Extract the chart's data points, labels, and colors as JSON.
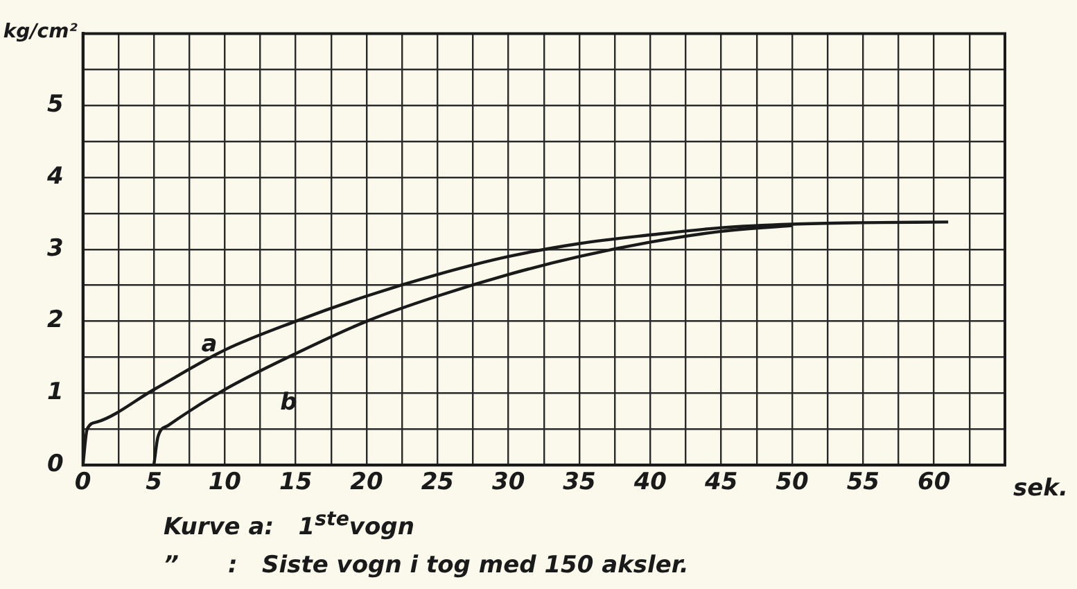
{
  "chart_data": {
    "type": "line",
    "xlabel": "sek.",
    "ylabel": "kg/cm²",
    "xlim": [
      0,
      65
    ],
    "ylim": [
      0,
      6
    ],
    "xticks": [
      0,
      {
        "value": 2.5,
        "label": null
      },
      5,
      {
        "value": 7.5,
        "label": null
      },
      10,
      {
        "value": 12.5,
        "label": null
      },
      15,
      {
        "value": 17.5,
        "label": null
      },
      20,
      {
        "value": 22.5,
        "label": null
      },
      25,
      {
        "value": 27.5,
        "label": null
      },
      30,
      {
        "value": 32.5,
        "label": null
      },
      35,
      {
        "value": 37.5,
        "label": null
      },
      40,
      {
        "value": 42.5,
        "label": null
      },
      45,
      {
        "value": 47.5,
        "label": null
      },
      50,
      {
        "value": 52.5,
        "label": null
      },
      55,
      {
        "value": 57.5,
        "label": null
      },
      60,
      {
        "value": 62.5,
        "label": null
      },
      {
        "value": 65,
        "label": null
      }
    ],
    "yticks": [
      0,
      {
        "value": 0.5,
        "label": null
      },
      1,
      {
        "value": 1.5,
        "label": null
      },
      2,
      {
        "value": 2.5,
        "label": null
      },
      3,
      {
        "value": 3.5,
        "label": null
      },
      4,
      {
        "value": 4.5,
        "label": null
      },
      5,
      {
        "value": 5.5,
        "label": null
      },
      {
        "value": 6,
        "label": null
      }
    ],
    "grid": true,
    "marker": "none",
    "line_style": "solid",
    "series": [
      {
        "name": "a",
        "color": "#1a1a1a",
        "x": [
          0,
          0.3,
          1,
          5,
          10,
          15,
          20,
          25,
          30,
          35,
          40,
          45,
          50,
          55,
          61
        ],
        "values": [
          0,
          0.5,
          0.6,
          1.05,
          1.6,
          2.0,
          2.35,
          2.65,
          2.9,
          3.08,
          3.2,
          3.3,
          3.35,
          3.37,
          3.38
        ]
      },
      {
        "name": "b",
        "color": "#1a1a1a",
        "x": [
          5,
          5.3,
          6,
          10,
          15,
          20,
          25,
          30,
          35,
          40,
          45,
          50
        ],
        "values": [
          0,
          0.4,
          0.55,
          1.05,
          1.55,
          2.0,
          2.35,
          2.65,
          2.9,
          3.1,
          3.25,
          3.33
        ]
      }
    ],
    "annotations": [
      "Kurve a:   1$^{ste}$vogn",
      "”      :   Siste vogn i tog med 150 aksler."
    ]
  }
}
